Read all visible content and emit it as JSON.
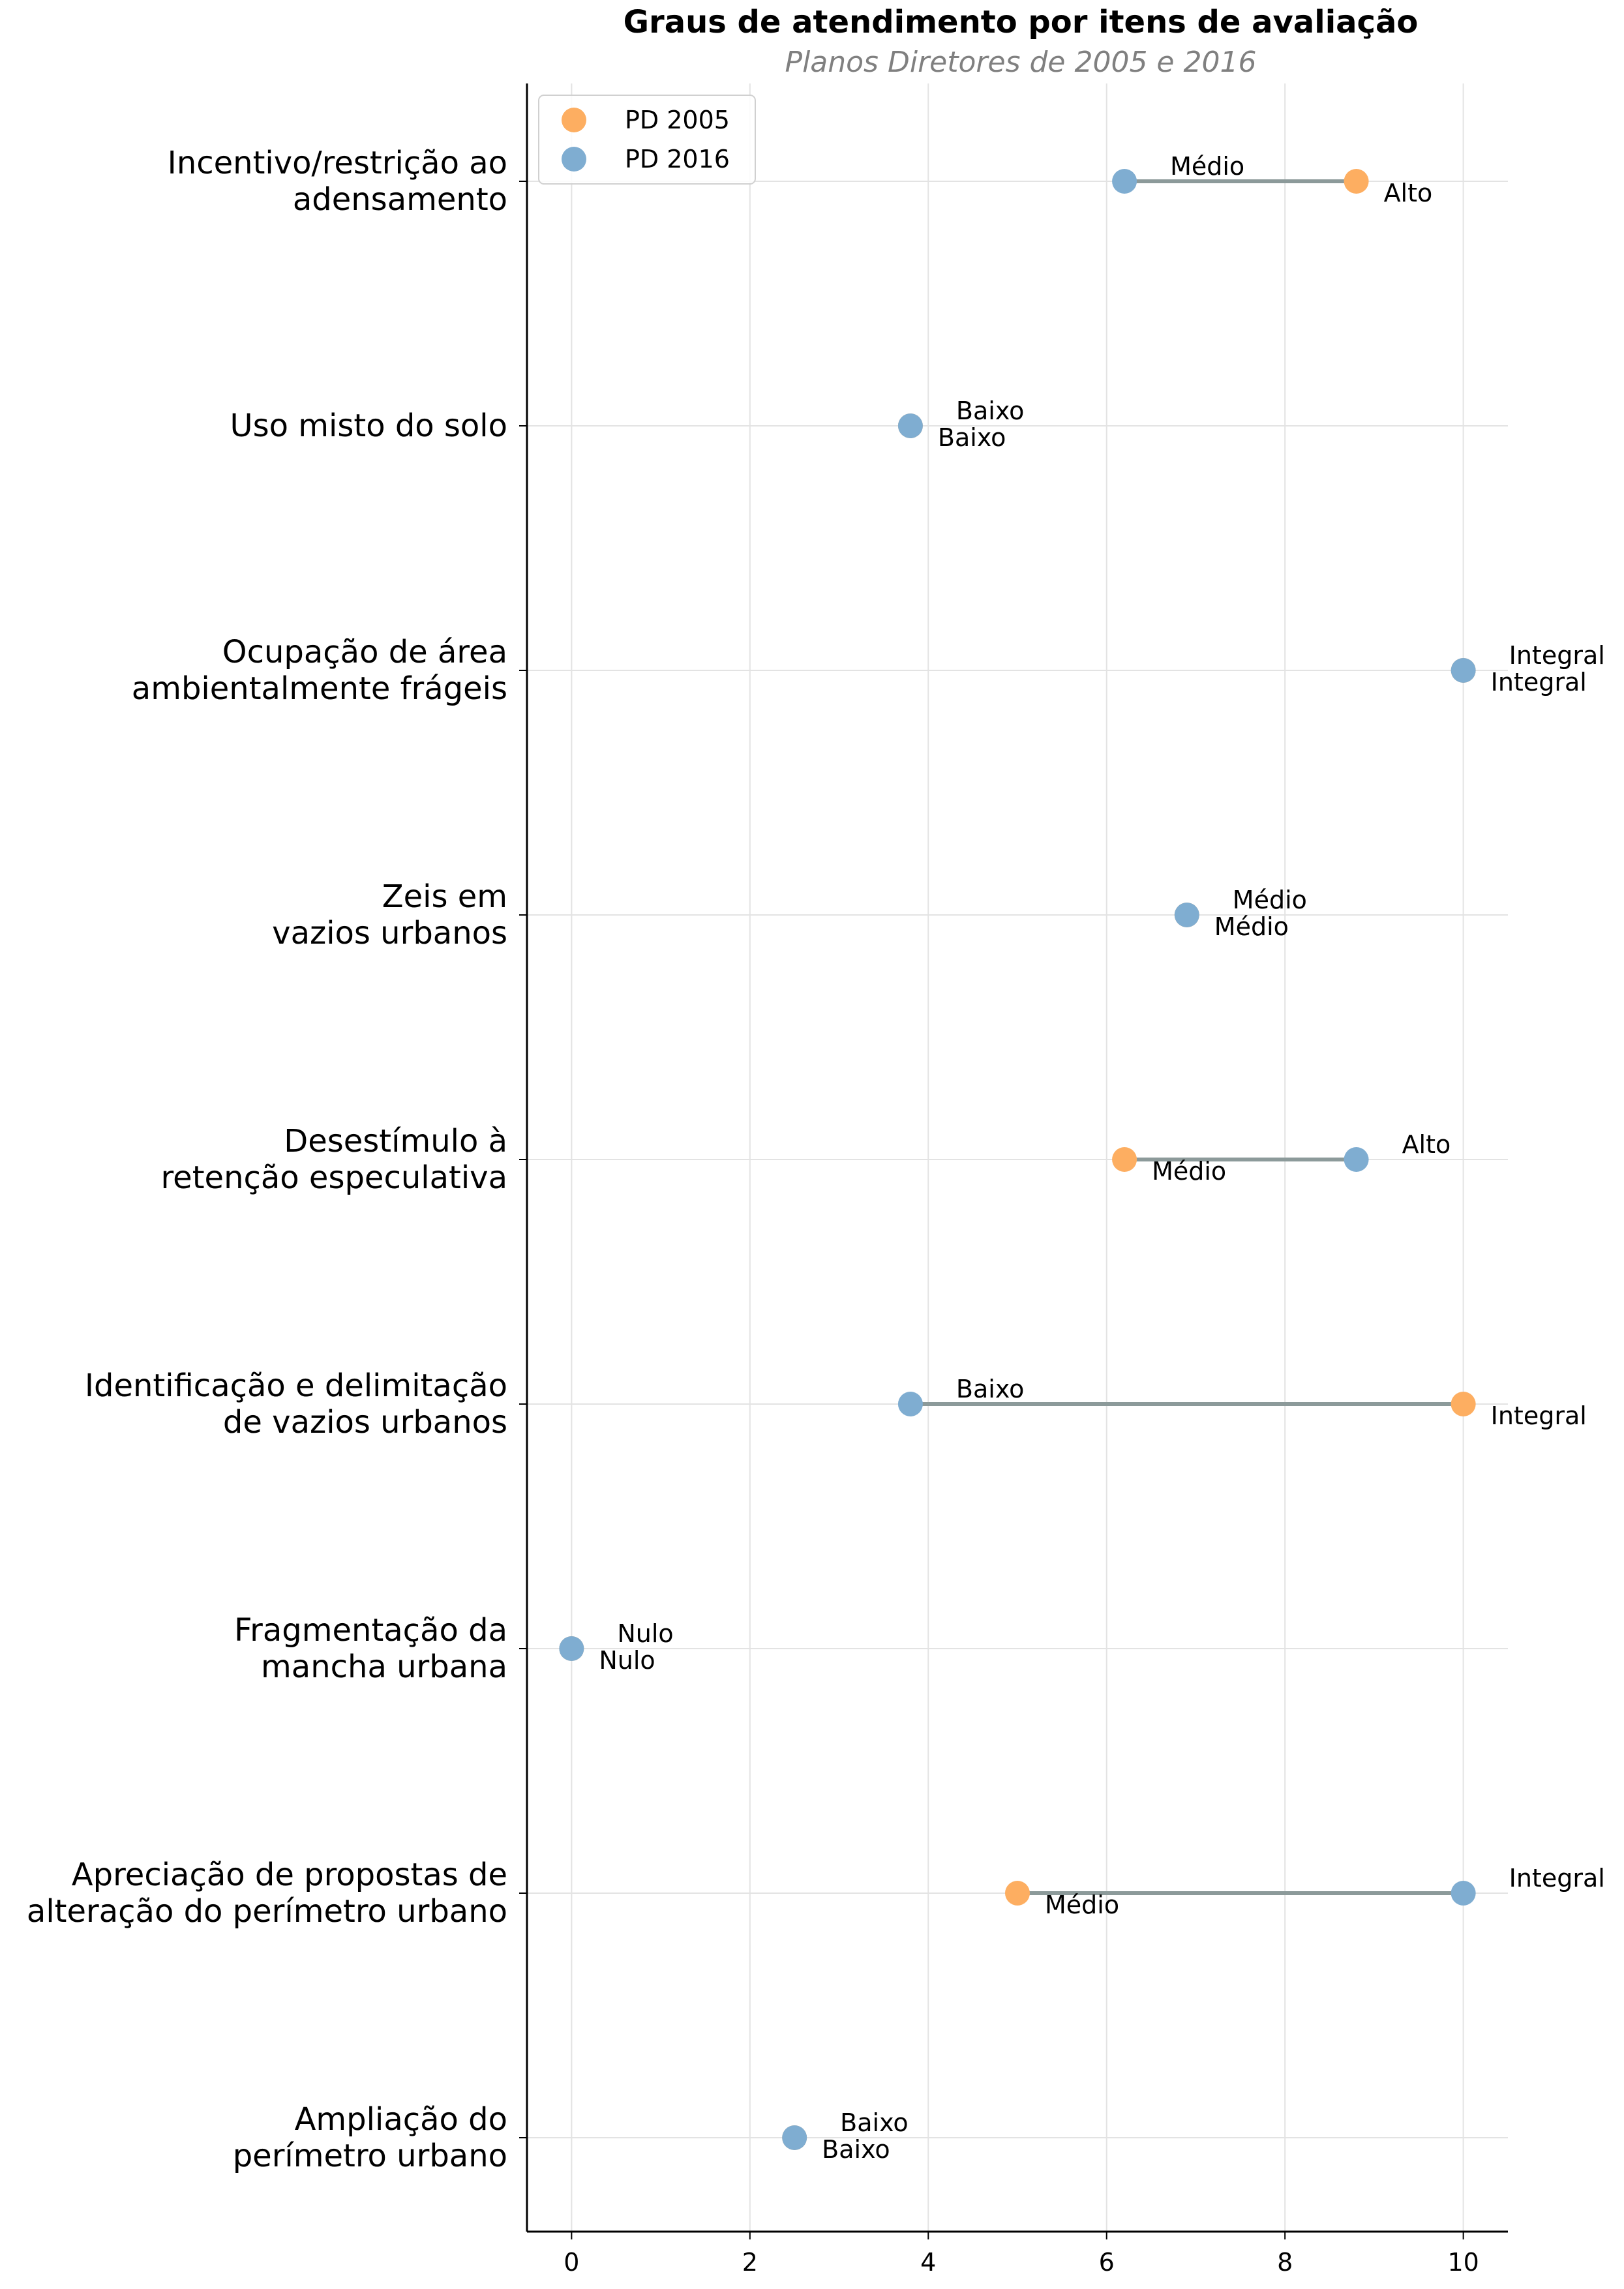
{
  "chart_data": {
    "type": "dumbbell",
    "title": "Graus de atendimento por itens de avaliação",
    "subtitle": "Planos Diretores de 2005 e 2016",
    "xlim": [
      -0.5,
      10.5
    ],
    "xticks": [
      0,
      2,
      4,
      6,
      8,
      10
    ],
    "grid": true,
    "legend": "top-left",
    "colors": {
      "pd2005": "#FDAE61",
      "pd2016": "#7FADD1",
      "connector": "#8C9A9A"
    },
    "series": [
      {
        "name": "PD 2005",
        "color": "#FDAE61"
      },
      {
        "name": "PD 2016",
        "color": "#7FADD1"
      }
    ],
    "categories": [
      {
        "label": [
          "Incentivo/restrição ao",
          "adensamento"
        ],
        "pd2005": 8.8,
        "pd2005_label": "Alto",
        "pd2016": 6.2,
        "pd2016_label": "Médio"
      },
      {
        "label": [
          "Uso misto do solo"
        ],
        "pd2005": 3.8,
        "pd2005_label": "Baixo",
        "pd2016": 3.8,
        "pd2016_label": "Baixo"
      },
      {
        "label": [
          "Ocupação de área",
          "ambientalmente frágeis"
        ],
        "pd2005": 10,
        "pd2005_label": "Integral",
        "pd2016": 10,
        "pd2016_label": "Integral"
      },
      {
        "label": [
          "Zeis em",
          "vazios urbanos"
        ],
        "pd2005": 6.9,
        "pd2005_label": "Médio",
        "pd2016": 6.9,
        "pd2016_label": "Médio"
      },
      {
        "label": [
          "Desestímulo à",
          "retenção especulativa"
        ],
        "pd2005": 6.2,
        "pd2005_label": "Médio",
        "pd2016": 8.8,
        "pd2016_label": "Alto"
      },
      {
        "label": [
          "Identificação e delimitação",
          "de vazios urbanos"
        ],
        "pd2005": 10,
        "pd2005_label": "Integral",
        "pd2016": 3.8,
        "pd2016_label": "Baixo"
      },
      {
        "label": [
          "Fragmentação da",
          "mancha urbana"
        ],
        "pd2005": 0,
        "pd2005_label": "Nulo",
        "pd2016": 0,
        "pd2016_label": "Nulo"
      },
      {
        "label": [
          "Apreciação de propostas de",
          "alteração do perímetro urbano"
        ],
        "pd2005": 5,
        "pd2005_label": "Médio",
        "pd2016": 10,
        "pd2016_label": "Integral"
      },
      {
        "label": [
          "Ampliação do",
          "perímetro urbano"
        ],
        "pd2005": 2.5,
        "pd2005_label": "Baixo",
        "pd2016": 2.5,
        "pd2016_label": "Baixo"
      }
    ]
  }
}
